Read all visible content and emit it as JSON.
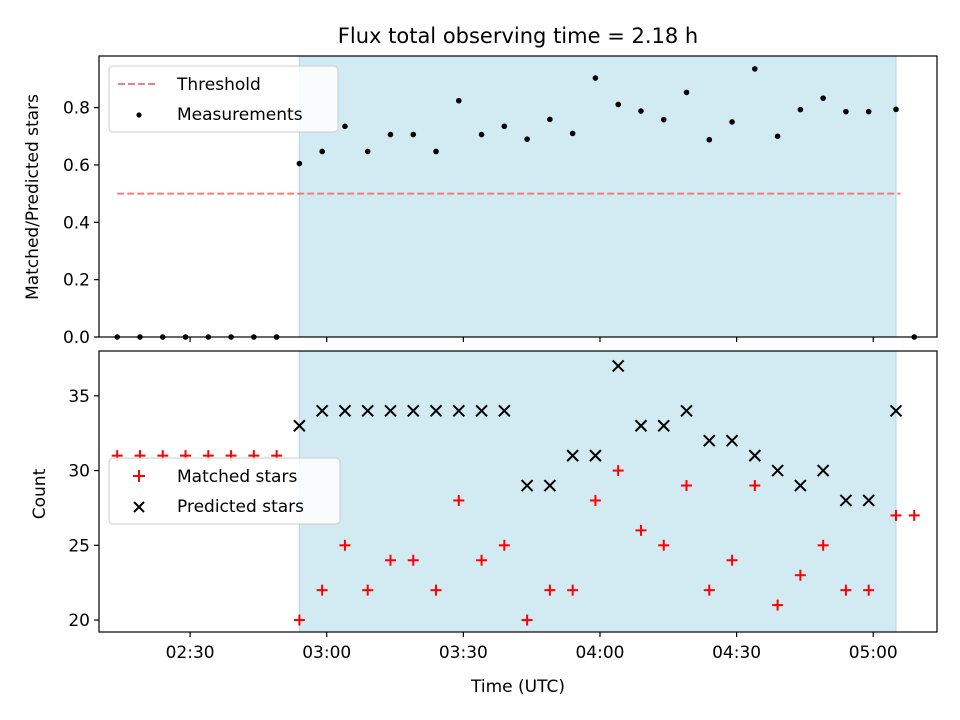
{
  "chart_data": [
    {
      "type": "scatter",
      "title": "Flux total observing time = 2.18 h",
      "xlabel": "",
      "ylabel": "Matched/Predicted stars",
      "ylim": [
        0,
        0.98
      ],
      "yticks": [
        "0.0",
        "0.2",
        "0.4",
        "0.6",
        "0.8"
      ],
      "ytick_values": [
        0,
        0.2,
        0.4,
        0.6,
        0.8
      ],
      "legend": [
        "Threshold",
        "Measurements"
      ],
      "legend_position": "upper-left",
      "shaded_span": {
        "start": "02:54",
        "end": "05:05",
        "color": "#add8e6"
      },
      "threshold": {
        "name": "Threshold",
        "value": 0.5,
        "start": "02:14",
        "end": "05:06",
        "color": "#f08080"
      },
      "series": [
        {
          "name": "Measurements",
          "color": "#000000",
          "x": [
            "02:14",
            "02:19",
            "02:24",
            "02:29",
            "02:34",
            "02:39",
            "02:44",
            "02:49",
            "02:54",
            "02:59",
            "03:04",
            "03:09",
            "03:14",
            "03:19",
            "03:24",
            "03:29",
            "03:34",
            "03:39",
            "03:44",
            "03:49",
            "03:54",
            "03:59",
            "04:04",
            "04:09",
            "04:14",
            "04:19",
            "04:24",
            "04:29",
            "04:34",
            "04:39",
            "04:44",
            "04:49",
            "04:54",
            "04:59",
            "05:05",
            "05:09"
          ],
          "y": [
            0,
            0,
            0,
            0,
            0,
            0,
            0,
            0,
            0.605,
            0.647,
            0.735,
            0.647,
            0.706,
            0.706,
            0.647,
            0.824,
            0.706,
            0.735,
            0.69,
            0.759,
            0.71,
            0.903,
            0.811,
            0.788,
            0.758,
            0.853,
            0.688,
            0.75,
            0.935,
            0.7,
            0.793,
            0.833,
            0.786,
            0.786,
            0.794,
            0
          ]
        }
      ]
    },
    {
      "type": "scatter",
      "title": "",
      "xlabel": "Time (UTC)",
      "ylabel": "Count",
      "ylim": [
        19.2,
        38
      ],
      "yticks": [
        "20",
        "25",
        "30",
        "35"
      ],
      "ytick_values": [
        20,
        25,
        30,
        35
      ],
      "xticks": [
        "02:30",
        "03:00",
        "03:30",
        "04:00",
        "04:30",
        "05:00"
      ],
      "xtick_values": [
        "02:30",
        "03:00",
        "03:30",
        "04:00",
        "04:30",
        "05:00"
      ],
      "legend": [
        "Matched stars",
        "Predicted stars"
      ],
      "legend_position": "center-left",
      "shaded_span": {
        "start": "02:54",
        "end": "05:05",
        "color": "#add8e6"
      },
      "series": [
        {
          "name": "Matched stars",
          "marker": "+",
          "color": "#ff0000",
          "x": [
            "02:14",
            "02:19",
            "02:24",
            "02:29",
            "02:34",
            "02:39",
            "02:44",
            "02:49",
            "02:54",
            "02:59",
            "03:04",
            "03:09",
            "03:14",
            "03:19",
            "03:24",
            "03:29",
            "03:34",
            "03:39",
            "03:44",
            "03:49",
            "03:54",
            "03:59",
            "04:04",
            "04:09",
            "04:14",
            "04:19",
            "04:24",
            "04:29",
            "04:34",
            "04:39",
            "04:44",
            "04:49",
            "04:54",
            "04:59",
            "05:05",
            "05:09"
          ],
          "y": [
            31,
            31,
            31,
            31,
            31,
            31,
            31,
            31,
            20,
            22,
            25,
            22,
            24,
            24,
            22,
            28,
            24,
            25,
            20,
            22,
            22,
            28,
            30,
            26,
            25,
            29,
            22,
            24,
            29,
            21,
            23,
            25,
            22,
            22,
            27,
            27
          ]
        },
        {
          "name": "Predicted stars",
          "marker": "x",
          "color": "#000000",
          "x": [
            "02:54",
            "02:59",
            "03:04",
            "03:09",
            "03:14",
            "03:19",
            "03:24",
            "03:29",
            "03:34",
            "03:39",
            "03:44",
            "03:49",
            "03:54",
            "03:59",
            "04:04",
            "04:09",
            "04:14",
            "04:19",
            "04:24",
            "04:29",
            "04:34",
            "04:39",
            "04:44",
            "04:49",
            "04:54",
            "04:59",
            "05:05"
          ],
          "y": [
            33,
            34,
            34,
            34,
            34,
            34,
            34,
            34,
            34,
            34,
            29,
            29,
            31,
            31,
            37,
            33,
            33,
            34,
            32,
            32,
            31,
            30,
            29,
            30,
            28,
            28,
            34
          ]
        }
      ]
    }
  ]
}
